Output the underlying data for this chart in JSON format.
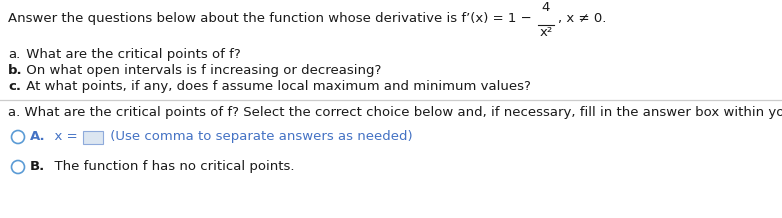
{
  "bg_color": "#ffffff",
  "text_color": "#1a1a1a",
  "blue_color": "#4472C4",
  "circle_color": "#5b9bd5",
  "sep_color": "#cccccc",
  "box_color": "#dce6f1",
  "box_edge_color": "#8eaadb",
  "fs": 9.5,
  "fs_bold": 9.5,
  "line1_prefix": "Answer the questions below about the function whose derivative is f’(x) = 1 − ",
  "frac_num": "4",
  "frac_den": "x²",
  "line1_suffix": ", x ≠ 0.",
  "lines_abc": [
    {
      "label": "a.",
      "bold_label": false,
      "text": " What are the critical points of f?",
      "bold_text": false
    },
    {
      "label": "b.",
      "bold_label": true,
      "text": " On what open intervals is f increasing or decreasing?",
      "bold_text": false
    },
    {
      "label": "c.",
      "bold_label": true,
      "text": " At what points, if any, does f assume local maximum and minimum values?",
      "bold_text": false
    }
  ],
  "line_q": "a. What are the critical points of f? Select the correct choice below and, if necessary, fill in the answer box within your choice.",
  "optA_label": "A.",
  "optA_x_eq": "  x = ",
  "optA_hint": " (Use comma to separate answers as needed)",
  "optB_label": "B.",
  "optB_text": "  The function f has no critical points."
}
